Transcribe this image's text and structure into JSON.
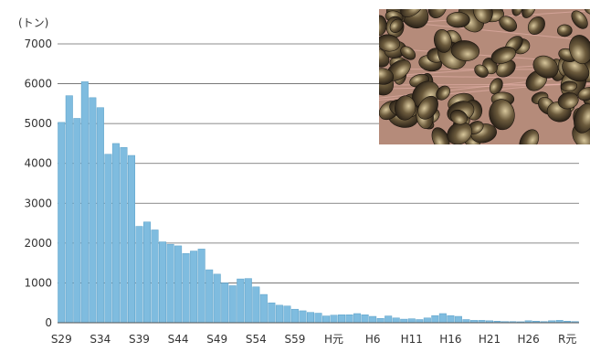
{
  "chart_data": {
    "type": "bar",
    "title": "",
    "xlabel": "",
    "ylabel": "",
    "unit_label": "(トン)",
    "ylim": [
      0,
      7000
    ],
    "yticks": [
      0,
      1000,
      2000,
      3000,
      4000,
      5000,
      6000,
      7000
    ],
    "grid": true,
    "bar_color": "#7fbcdf",
    "bar_edge_color": "#5aa0c8",
    "xtick_labels": [
      {
        "label": "S29",
        "index": 0
      },
      {
        "label": "S34",
        "index": 5
      },
      {
        "label": "S39",
        "index": 10
      },
      {
        "label": "S44",
        "index": 15
      },
      {
        "label": "S49",
        "index": 20
      },
      {
        "label": "S54",
        "index": 25
      },
      {
        "label": "S59",
        "index": 30
      },
      {
        "label": "H元",
        "index": 35
      },
      {
        "label": "H6",
        "index": 40
      },
      {
        "label": "H11",
        "index": 45
      },
      {
        "label": "H16",
        "index": 50
      },
      {
        "label": "H21",
        "index": 55
      },
      {
        "label": "H26",
        "index": 60
      },
      {
        "label": "R元",
        "index": 65
      }
    ],
    "values": [
      5030,
      5700,
      5130,
      6050,
      5650,
      5400,
      4230,
      4500,
      4400,
      4200,
      2420,
      2530,
      2330,
      2030,
      1970,
      1930,
      1740,
      1800,
      1850,
      1330,
      1220,
      1000,
      930,
      1100,
      1110,
      900,
      710,
      500,
      440,
      420,
      340,
      300,
      260,
      240,
      170,
      190,
      200,
      200,
      230,
      200,
      160,
      110,
      170,
      120,
      90,
      100,
      80,
      120,
      180,
      230,
      180,
      160,
      80,
      60,
      60,
      50,
      40,
      30,
      30,
      25,
      50,
      40,
      30,
      50,
      60,
      40,
      30
    ]
  },
  "photo": {
    "subject": "clam-shells-photo",
    "colors": [
      "#6b5a3c",
      "#3a2f22",
      "#c9b98a",
      "#d88a8a"
    ]
  }
}
